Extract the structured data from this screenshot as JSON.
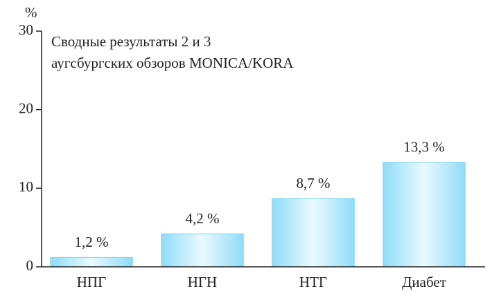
{
  "chart_data": {
    "type": "bar",
    "title_lines": [
      "Сводные результаты 2 и 3",
      "аугсбургских обзоров MONICA/KORA"
    ],
    "ylabel": "%",
    "categories": [
      "НПГ",
      "НГН",
      "НТГ",
      "Диабет"
    ],
    "values": [
      1.2,
      4.2,
      8.7,
      13.3
    ],
    "value_labels": [
      "1,2 %",
      "4,2 %",
      "8,7 %",
      "13,3 %"
    ],
    "color": "#7fd6f5",
    "ylim": [
      0,
      30
    ],
    "yticks": [
      0,
      10,
      20,
      30
    ],
    "grid": false
  }
}
